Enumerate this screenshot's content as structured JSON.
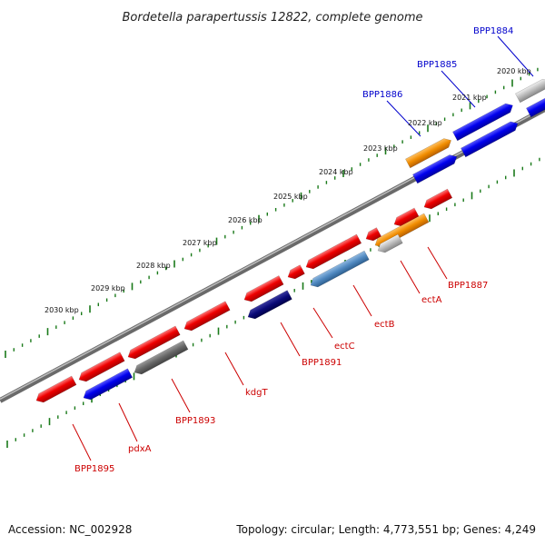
{
  "title": "Bordetella parapertussis 12822, complete genome",
  "footer": {
    "accession": "Accession: NC_002928",
    "topology": "Topology: circular; Length: 4,773,551 bp; Genes: 4,249"
  },
  "colors": {
    "forward_label": "#0000cc",
    "reverse_label": "#cc0000",
    "backbone": "#888888",
    "ticks": "#1a7a1a"
  },
  "kbp_ticks": [
    "2020 kbp",
    "2021 kbp",
    "2022 kbp",
    "2023 kbp",
    "2024 kbp",
    "2025 kbp",
    "2026 kbp",
    "2027 kbp",
    "2028 kbp",
    "2029 kbp",
    "2030 kbp"
  ],
  "forward_labels": [
    "BPP1884",
    "BPP1885",
    "BPP1886"
  ],
  "reverse_labels": [
    "BPP1887",
    "ectA",
    "ectB",
    "ectC",
    "BPP1891",
    "kdgT",
    "BPP1893",
    "pdxA",
    "BPP1895"
  ]
}
